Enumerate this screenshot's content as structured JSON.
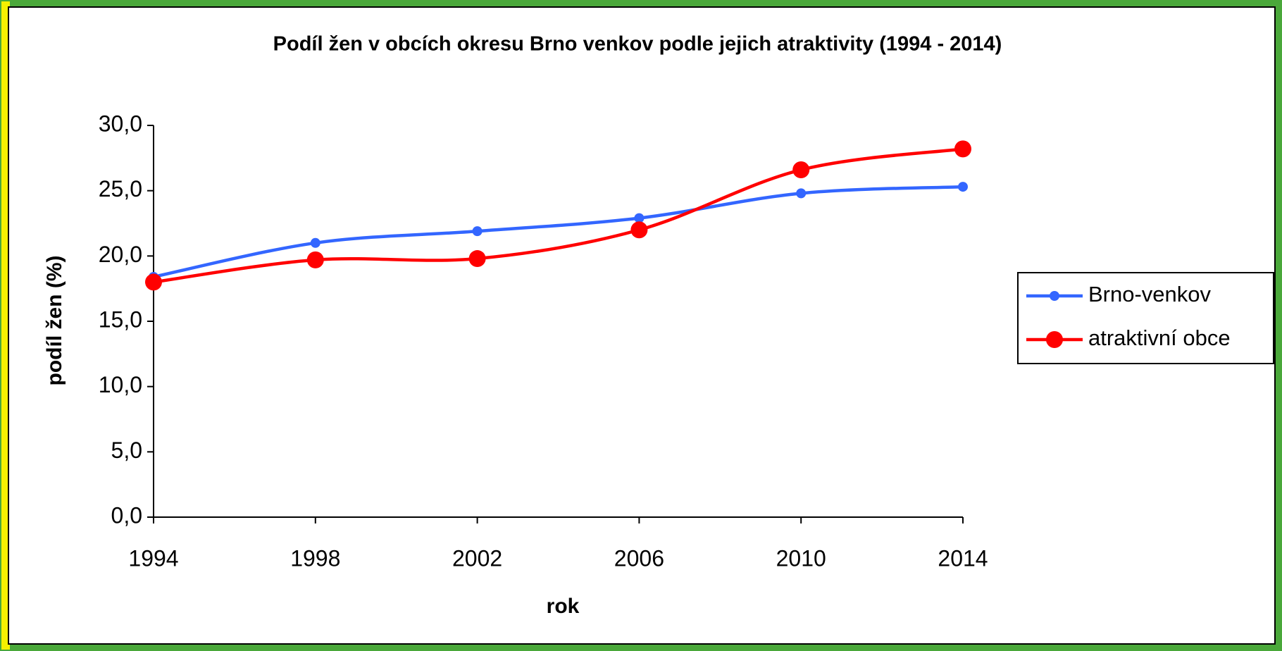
{
  "chart_data": {
    "type": "line",
    "title": "Podíl žen v obcích okresu Brno venkov podle jejich atraktivity (1994 - 2014)",
    "x_label": "rok",
    "y_label": "podíl žen (%)",
    "x": [
      1994,
      1998,
      2002,
      2006,
      2010,
      2014
    ],
    "series": [
      {
        "name": "Brno-venkov",
        "color": "#3366ff",
        "values": [
          18.4,
          21.0,
          21.9,
          22.9,
          24.8,
          25.3
        ],
        "marker_size": 7
      },
      {
        "name": "atraktivní obce",
        "color": "#ff0000",
        "values": [
          18.0,
          19.7,
          19.8,
          22.0,
          26.6,
          28.2
        ],
        "marker_size": 12
      }
    ],
    "xlim": [
      1994,
      2014
    ],
    "xticks": [
      1994,
      1998,
      2002,
      2006,
      2010,
      2014
    ],
    "ylim": [
      0,
      30
    ],
    "yticks": [
      {
        "value": 0,
        "label": "0,0"
      },
      {
        "value": 5,
        "label": "5,0"
      },
      {
        "value": 10,
        "label": "10,0"
      },
      {
        "value": 15,
        "label": "15,0"
      },
      {
        "value": 20,
        "label": "20,0"
      },
      {
        "value": 25,
        "label": "25,0"
      },
      {
        "value": 30,
        "label": "30,0"
      }
    ],
    "grid": false,
    "legend_position": "right",
    "smooth": true
  }
}
